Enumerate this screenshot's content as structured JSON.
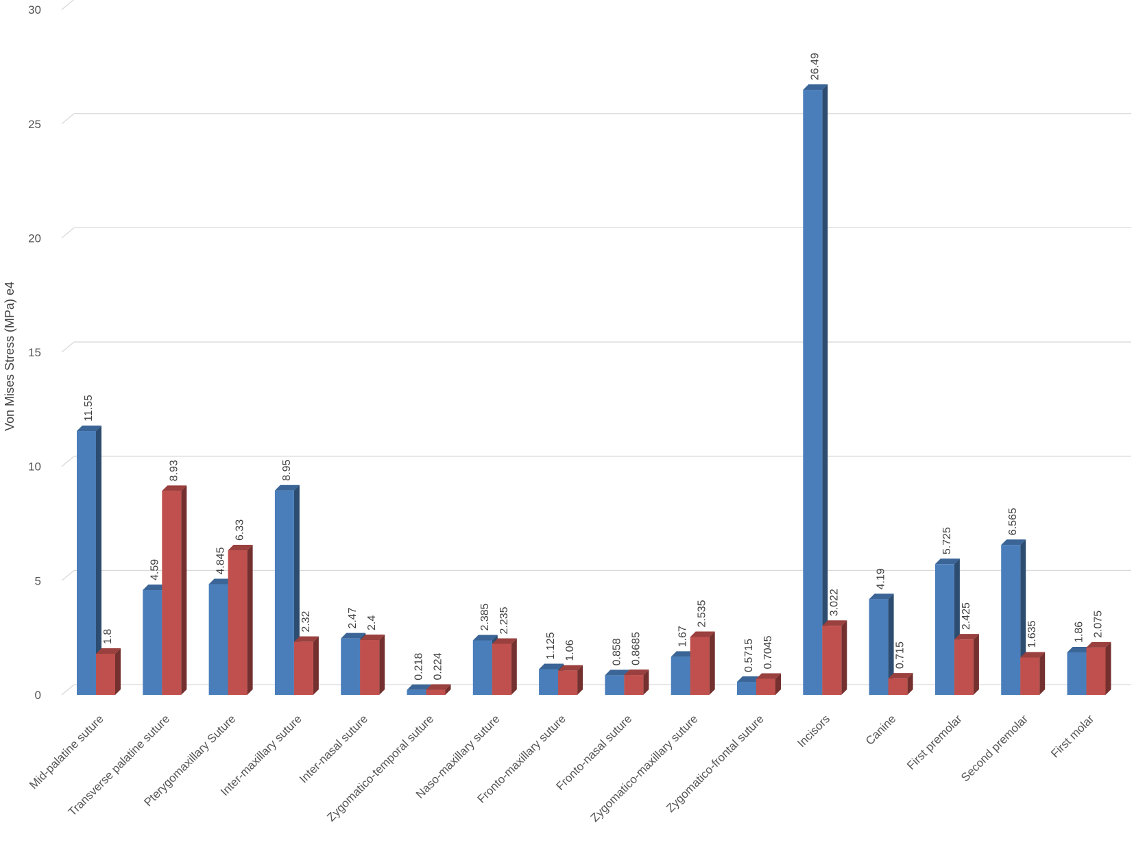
{
  "chart_data": {
    "type": "bar",
    "style": "3d-clustered-column",
    "ylabel": "Von Mises Stress (MPa) e4",
    "ylim": [
      0,
      30
    ],
    "yticks": [
      0,
      5,
      10,
      15,
      20,
      25,
      30
    ],
    "grid": true,
    "categories": [
      "Mid-palatine suture",
      "Transverse palatine suture",
      "Pterygomaxillary Suture",
      "Inter-maxillary suture",
      "Inter-nasal suture",
      "Zygomatico-temporal suture",
      "Naso-maxillary suture",
      "Fronto-maxillary suture",
      "Fronto-nasal suture",
      "Zygomatico-maxillary suture",
      "Zygomatico-frontal suture",
      "Incisors",
      "Canine",
      "First premolar",
      "Second premolar",
      "First molar"
    ],
    "series": [
      {
        "color": "#4a7ebb",
        "values": [
          11.55,
          4.59,
          4.845,
          8.95,
          2.47,
          0.218,
          2.385,
          1.125,
          0.858,
          1.67,
          0.5715,
          26.49,
          4.19,
          5.725,
          6.565,
          1.86
        ],
        "labels": [
          "11.55",
          "4.59",
          "4.845",
          "8.95",
          "2.47",
          "0.218",
          "2.385",
          "1.125",
          "0.858",
          "1.67",
          "0.5715",
          "26.49",
          "4.19",
          "5.725",
          "6.565",
          "1.86"
        ]
      },
      {
        "color": "#c0504d",
        "values": [
          1.8,
          8.93,
          6.33,
          2.32,
          2.4,
          0.224,
          2.235,
          1.06,
          0.8685,
          2.535,
          0.7045,
          3.022,
          0.715,
          2.425,
          1.635,
          2.075
        ],
        "labels": [
          "1.8",
          "8.93",
          "6.33",
          "2.32",
          "2.4",
          "0.224",
          "2.235",
          "1.06",
          "0.8685",
          "2.535",
          "0.7045",
          "3.022",
          "0.715",
          "2.425",
          "1.635",
          "2.075"
        ]
      }
    ]
  }
}
